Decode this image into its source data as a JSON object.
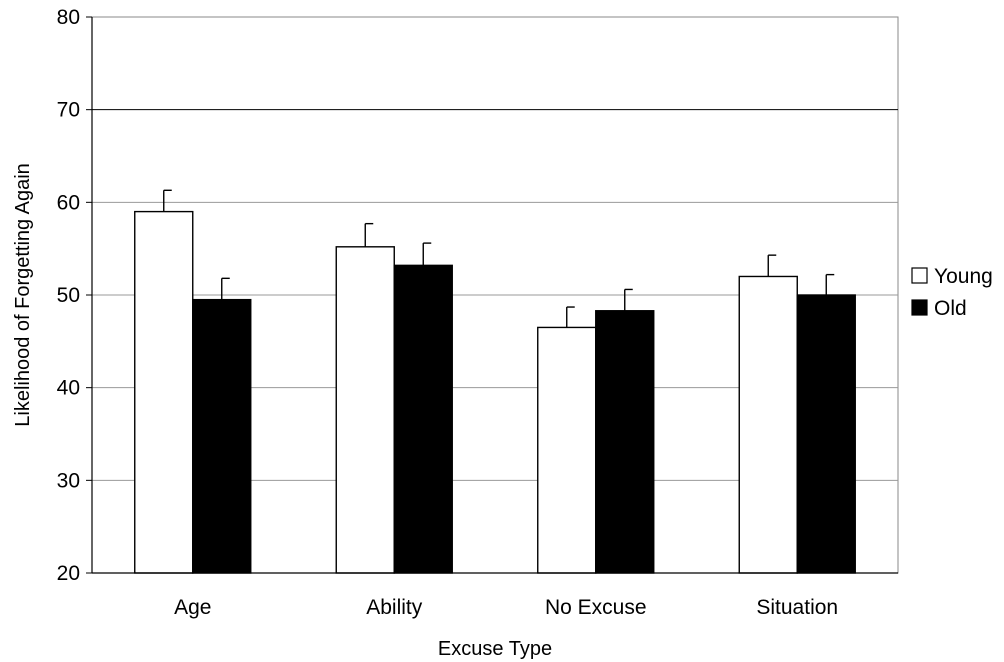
{
  "chart_data": {
    "type": "bar",
    "xlabel": "Excuse Type",
    "ylabel": "Likelihood of Forgetting Again",
    "ylim": [
      20,
      80
    ],
    "yticks": [
      20,
      30,
      40,
      50,
      60,
      70,
      80
    ],
    "grid": true,
    "legend_position": "right",
    "categories": [
      "Age",
      "Ability",
      "No Excuse",
      "Situation"
    ],
    "series": [
      {
        "name": "Young",
        "color": "#ffffff",
        "values": [
          59.0,
          55.2,
          46.5,
          52.0
        ],
        "error": [
          2.3,
          2.5,
          2.2,
          2.3
        ]
      },
      {
        "name": "Old",
        "color": "#000000",
        "values": [
          49.5,
          53.2,
          48.3,
          50.0
        ],
        "error": [
          2.3,
          2.4,
          2.3,
          2.2
        ]
      }
    ]
  }
}
